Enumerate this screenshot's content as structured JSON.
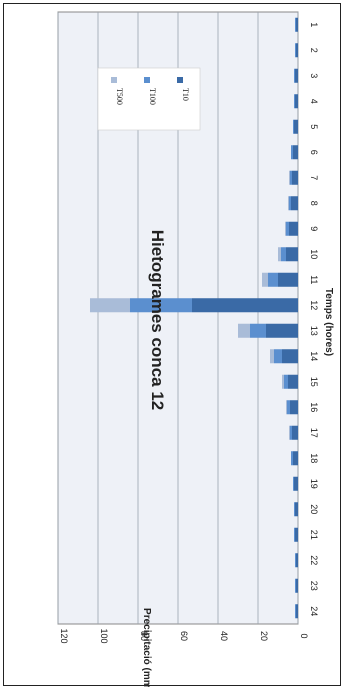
{
  "chart_data": {
    "type": "bar",
    "stacked": true,
    "orientation": "rotated-90",
    "title": "Hietogrames conca 12",
    "xlabel": "Temps (hores)",
    "ylabel": "Precipitació (mm)",
    "ylim": [
      0,
      120
    ],
    "yticks": [
      0,
      20,
      40,
      60,
      80,
      100,
      120
    ],
    "grid": true,
    "legend_position": "top-right",
    "categories": [
      "1",
      "2",
      "3",
      "4",
      "5",
      "6",
      "7",
      "8",
      "9",
      "10",
      "11",
      "12",
      "13",
      "14",
      "15",
      "16",
      "17",
      "18",
      "19",
      "20",
      "21",
      "22",
      "23",
      "24"
    ],
    "series": [
      {
        "name": "T10",
        "color": "#3a6aa6",
        "values": [
          1,
          1,
          1.5,
          1.5,
          2,
          2.5,
          3,
          3.5,
          4.5,
          6,
          10,
          53,
          16,
          8,
          5,
          4,
          3,
          2.5,
          2,
          1.5,
          1.5,
          1,
          1,
          1
        ]
      },
      {
        "name": "T100",
        "color": "#5b8fcf",
        "values": [
          0.5,
          0.5,
          0.5,
          0.5,
          0.5,
          1,
          1,
          1,
          1.5,
          2.5,
          5,
          31,
          8,
          4,
          2,
          1.5,
          1,
          1,
          0.5,
          0.5,
          0.5,
          0.5,
          0.5,
          0.5
        ]
      },
      {
        "name": "T500",
        "color": "#a9bcd8",
        "values": [
          0,
          0,
          0,
          0,
          0,
          0,
          0.5,
          0.5,
          0.5,
          1.5,
          3,
          20,
          6,
          2,
          1,
          0.5,
          0.5,
          0,
          0,
          0,
          0,
          0,
          0,
          0
        ]
      }
    ]
  }
}
